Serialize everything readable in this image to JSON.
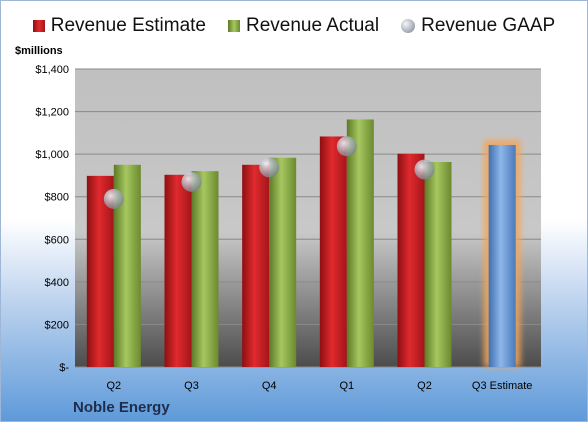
{
  "chart_data": {
    "type": "bar",
    "unit_label": "$millions",
    "company": "Noble Energy",
    "categories": [
      "Q2",
      "Q3",
      "Q4",
      "Q1",
      "Q2",
      "Q3 Estimate"
    ],
    "series": [
      {
        "name": "Revenue Estimate",
        "color": "#c8181e",
        "values": [
          898,
          903,
          950,
          1083,
          1002,
          null
        ]
      },
      {
        "name": "Revenue Actual",
        "color": "#8fb24a",
        "values": [
          950,
          920,
          983,
          1163,
          963,
          null
        ]
      },
      {
        "name": "Revenue GAAP",
        "color": "#aab0bb",
        "marker": "circle",
        "values": [
          790,
          870,
          938,
          1037,
          928,
          null
        ]
      },
      {
        "name": "Q3 Estimate",
        "color": "#6f9bd6",
        "highlight": "#f3a65a",
        "values": [
          null,
          null,
          null,
          null,
          null,
          1043
        ]
      }
    ],
    "y_ticks": [
      "$-",
      "$200",
      "$400",
      "$600",
      "$800",
      "$1,000",
      "$1,200",
      "$1,400"
    ],
    "ylim": [
      0,
      1400
    ],
    "grid": true,
    "legend_position": "top"
  }
}
